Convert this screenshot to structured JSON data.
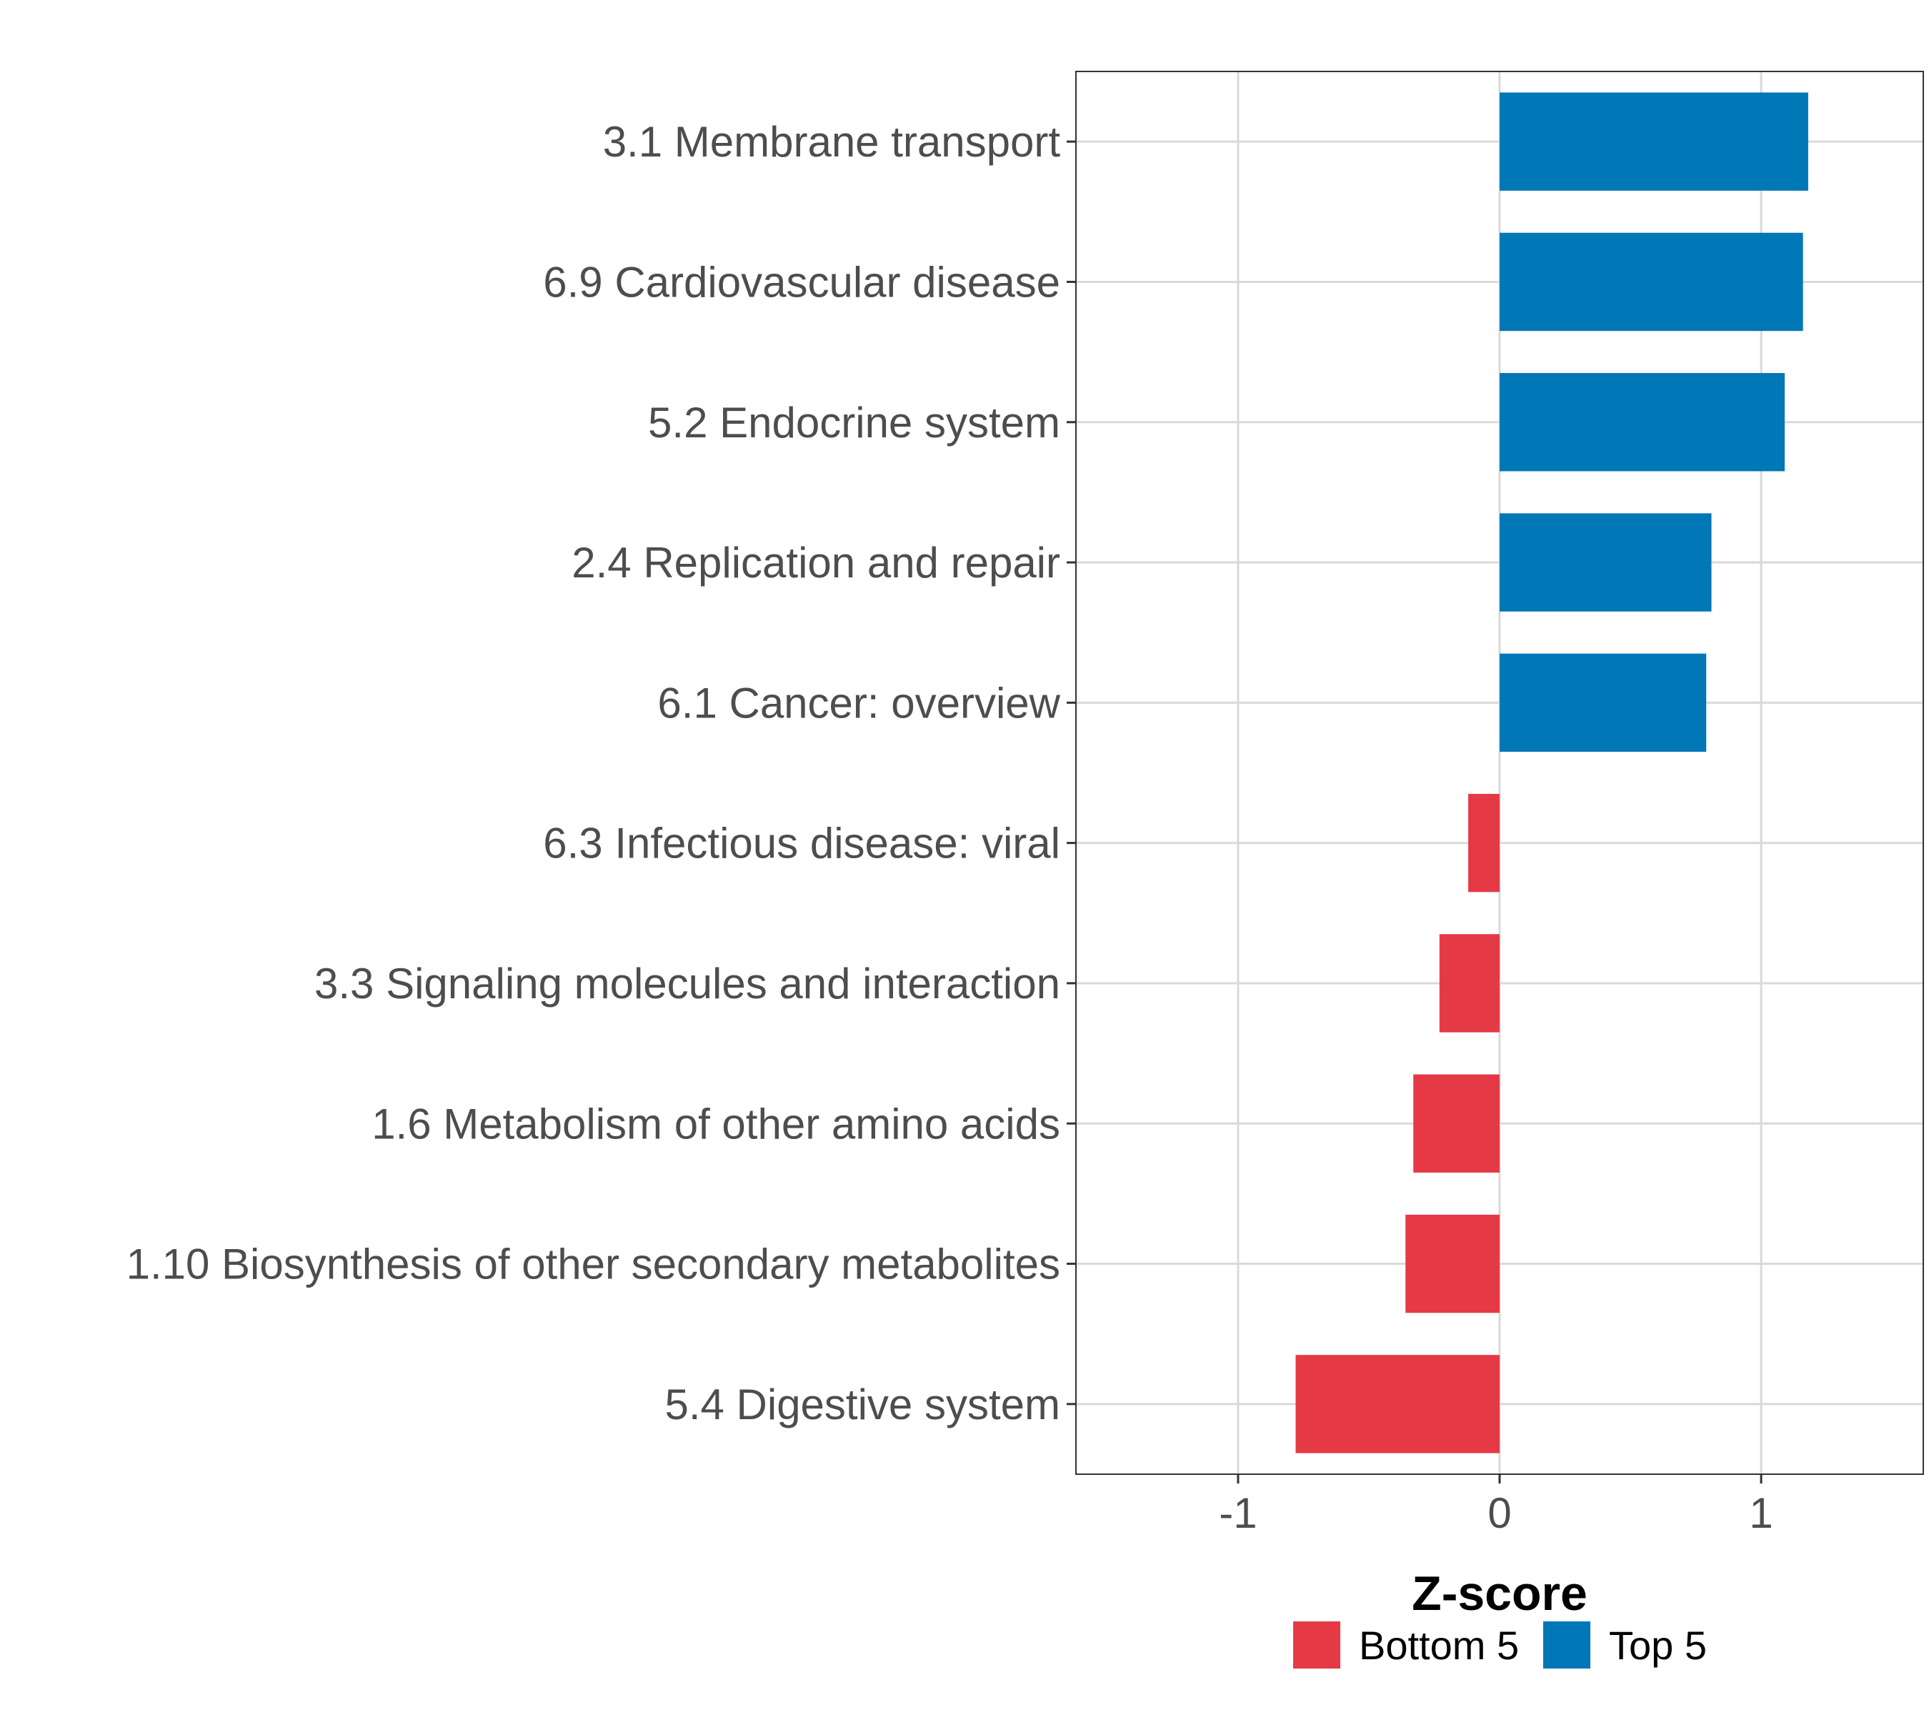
{
  "chart_data": {
    "type": "bar",
    "orientation": "horizontal",
    "title": "",
    "xlabel": "Z-score",
    "ylabel": "",
    "xlim": [
      -1.62,
      1.62
    ],
    "xticks": [
      {
        "value": -1,
        "label": "-1"
      },
      {
        "value": 0,
        "label": "0"
      },
      {
        "value": 1,
        "label": "1"
      }
    ],
    "grid": true,
    "legend_position": "bottom",
    "categories": [
      "3.1 Membrane transport",
      "6.9 Cardiovascular disease",
      "5.2 Endocrine system",
      "2.4 Replication and repair",
      "6.1 Cancer: overview",
      "6.3 Infectious disease: viral",
      "3.3 Signaling molecules and interaction",
      "1.6 Metabolism of other amino acids",
      "1.10 Biosynthesis of other secondary metabolites",
      "5.4 Digestive system"
    ],
    "values": [
      1.18,
      1.16,
      1.09,
      0.81,
      0.79,
      -0.12,
      -0.23,
      -0.33,
      -0.36,
      -0.78
    ],
    "groups": [
      "Top 5",
      "Top 5",
      "Top 5",
      "Top 5",
      "Top 5",
      "Bottom 5",
      "Bottom 5",
      "Bottom 5",
      "Bottom 5",
      "Bottom 5"
    ],
    "legend": [
      {
        "name": "Bottom 5",
        "color": "#e63946"
      },
      {
        "name": "Top 5",
        "color": "#0077b6"
      }
    ]
  }
}
